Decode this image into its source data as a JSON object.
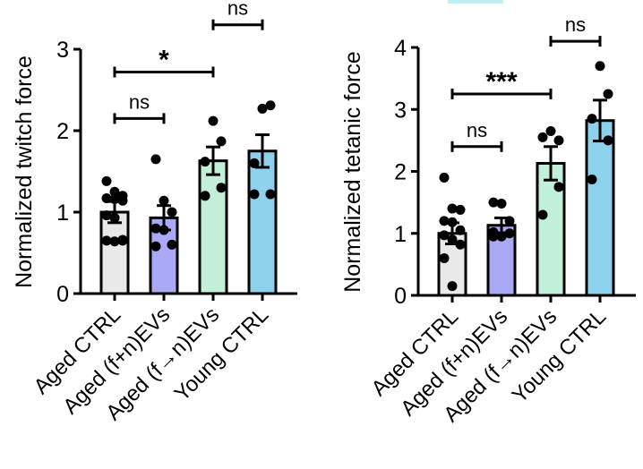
{
  "chart_data": [
    {
      "type": "bar",
      "ylabel": "Normalized twitch force",
      "ylim": [
        0,
        3
      ],
      "yticks": [
        "0",
        "1",
        "2",
        "3"
      ],
      "categories": [
        "Aged CTRL",
        "Aged (f+n)EVs",
        "Aged (f→n)EVs",
        "Young CTRL"
      ],
      "colors": [
        "#e9e9e9",
        "#a9a9f6",
        "#c2efd8",
        "#8ed1ec"
      ],
      "means": [
        1.0,
        0.93,
        1.63,
        1.75
      ],
      "sem": [
        0.13,
        0.15,
        0.17,
        0.2
      ],
      "points": [
        [
          1.38,
          1.25,
          1.2,
          1.17,
          1.16,
          1.14,
          0.96,
          0.93,
          0.66,
          0.65,
          0.64,
          0.65
        ],
        [
          1.65,
          1.14,
          1.0,
          0.8,
          0.78,
          0.6,
          0.58
        ],
        [
          2.12,
          1.87,
          1.62,
          1.3,
          1.2
        ],
        [
          2.27,
          2.31,
          1.6,
          1.22,
          1.22
        ]
      ],
      "comparisons": [
        {
          "from": 0,
          "to": 1,
          "y": 2.15,
          "label": "ns"
        },
        {
          "from": 0,
          "to": 2,
          "y": 2.72,
          "label": "*"
        },
        {
          "from": 2,
          "to": 3,
          "y": 3.3,
          "label": "ns"
        }
      ]
    },
    {
      "type": "bar",
      "ylabel": "Normalized tetanic force",
      "ylim": [
        0,
        4
      ],
      "yticks": [
        "0",
        "1",
        "2",
        "3",
        "4"
      ],
      "categories": [
        "Aged CTRL",
        "Aged (f+n)EVs",
        "Aged (f→n)EVs",
        "Young CTRL"
      ],
      "colors": [
        "#e9e9e9",
        "#a9a9f6",
        "#c2efd8",
        "#8ed1ec"
      ],
      "means": [
        1.0,
        1.13,
        2.13,
        2.82
      ],
      "sem": [
        0.17,
        0.12,
        0.27,
        0.33
      ],
      "points": [
        [
          1.9,
          1.4,
          1.38,
          1.2,
          1.18,
          1.05,
          0.97,
          0.9,
          0.82,
          0.6,
          0.15
        ],
        [
          1.5,
          1.48,
          1.2,
          1.02,
          0.95,
          1.0,
          0.95
        ],
        [
          2.65,
          2.5,
          2.55,
          1.75,
          1.3
        ],
        [
          3.7,
          3.25,
          2.85,
          2.5,
          1.87
        ]
      ],
      "comparisons": [
        {
          "from": 0,
          "to": 1,
          "y": 2.4,
          "label": "ns"
        },
        {
          "from": 0,
          "to": 2,
          "y": 3.25,
          "label": "***"
        },
        {
          "from": 2,
          "to": 3,
          "y": 4.1,
          "label": "ns"
        }
      ]
    }
  ]
}
